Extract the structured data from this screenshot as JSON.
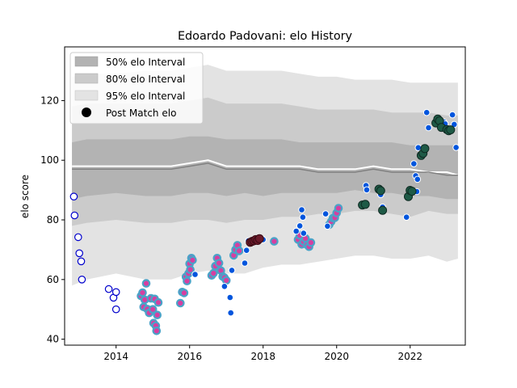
{
  "chart_data": {
    "type": "scatter",
    "title": "Edoardo Padovani: elo History",
    "xlabel": "",
    "ylabel": "elo score",
    "xlim": [
      2012.6,
      2023.5
    ],
    "ylim": [
      38,
      138
    ],
    "x_ticks": [
      2014,
      2016,
      2018,
      2020,
      2022
    ],
    "y_ticks": [
      40,
      60,
      80,
      100,
      120
    ],
    "grid": false,
    "legend_position": "top-left",
    "legend": [
      {
        "label": "50% elo Interval",
        "kind": "band",
        "color": "#b3b3b3"
      },
      {
        "label": "80% elo Interval",
        "kind": "band",
        "color": "#cbcbcb"
      },
      {
        "label": "95% elo Interval",
        "kind": "band",
        "color": "#e3e3e3"
      },
      {
        "label": "Post Match elo",
        "kind": "marker",
        "color": "#000000"
      }
    ],
    "colors": {
      "band50": "#b3b3b3",
      "band80": "#cbcbcb",
      "band95": "#e3e3e3",
      "median_line": "#808080",
      "mean_line": "#ffffff",
      "marker_edge_blue": "#0000cc",
      "marker_fill_blue": "#0055dd",
      "marker_edge_teal": "#4aa3c8",
      "marker_fill_pink": "#d63fa0",
      "marker_fill_dark_green": "#1e5a46",
      "marker_fill_maroon": "#6b1a2a"
    },
    "bands": {
      "x": [
        2012.8,
        2013.2,
        2014.0,
        2014.8,
        2015.5,
        2016.0,
        2016.5,
        2017.0,
        2017.5,
        2018.0,
        2018.5,
        2019.0,
        2019.5,
        2020.0,
        2020.5,
        2021.0,
        2021.5,
        2022.0,
        2022.5,
        2023.0,
        2023.3
      ],
      "p95_low": [
        58,
        60,
        62,
        60,
        60,
        62,
        63,
        62,
        62,
        64,
        65,
        65,
        66,
        67,
        68,
        68,
        67,
        67,
        68,
        66,
        67
      ],
      "p80_low": [
        78,
        79,
        80,
        79,
        79,
        80,
        80,
        79,
        80,
        80,
        81,
        81,
        82,
        82,
        83,
        83,
        82,
        81,
        83,
        82,
        82
      ],
      "p50_low": [
        87,
        88,
        89,
        88,
        88,
        89,
        89,
        88,
        89,
        88,
        89,
        89,
        89,
        89,
        90,
        89,
        89,
        88,
        88,
        87,
        87
      ],
      "median": [
        97,
        97,
        97,
        97,
        97,
        98,
        99,
        97,
        97,
        97,
        97,
        97,
        96,
        96,
        96,
        97,
        96,
        96,
        96,
        95,
        95
      ],
      "mean": [
        98,
        98,
        98,
        98,
        98,
        99,
        100,
        98,
        98,
        98,
        98,
        98,
        97,
        97,
        97,
        98,
        97,
        97,
        96,
        96,
        95
      ],
      "p50_high": [
        106,
        107,
        107,
        107,
        107,
        108,
        108,
        107,
        107,
        107,
        107,
        106,
        106,
        106,
        106,
        106,
        106,
        105,
        105,
        105,
        105
      ],
      "p80_high": [
        118,
        119,
        119,
        119,
        119,
        120,
        121,
        119,
        119,
        119,
        119,
        118,
        117,
        117,
        117,
        117,
        116,
        116,
        116,
        115,
        115
      ],
      "p95_high": [
        128,
        129,
        129,
        130,
        130,
        131,
        132,
        130,
        130,
        130,
        130,
        129,
        128,
        128,
        127,
        127,
        127,
        126,
        126,
        126,
        126
      ]
    },
    "series": [
      {
        "name": "Post Match elo",
        "style": "open-blue",
        "points": [
          [
            2012.85,
            87.8
          ],
          [
            2012.87,
            81.5
          ],
          [
            2012.97,
            74.2
          ],
          [
            2013.0,
            68.8
          ],
          [
            2013.05,
            66.1
          ],
          [
            2013.07,
            60.0
          ],
          [
            2013.8,
            56.8
          ],
          [
            2013.93,
            53.9
          ],
          [
            2014.0,
            55.8
          ],
          [
            2014.0,
            50.0
          ]
        ]
      },
      {
        "name": "Post Match elo",
        "style": "pink-teal",
        "points": [
          [
            2014.68,
            54.5
          ],
          [
            2014.72,
            55.6
          ],
          [
            2014.75,
            50.8
          ],
          [
            2014.78,
            53.2
          ],
          [
            2014.82,
            58.7
          ],
          [
            2014.85,
            50.1
          ],
          [
            2014.9,
            48.8
          ],
          [
            2014.95,
            53.7
          ],
          [
            2015.0,
            50.0
          ],
          [
            2015.02,
            45.4
          ],
          [
            2015.05,
            53.5
          ],
          [
            2015.08,
            44.5
          ],
          [
            2015.1,
            42.8
          ],
          [
            2015.12,
            48.1
          ],
          [
            2015.15,
            52.3
          ],
          [
            2015.75,
            52.1
          ],
          [
            2015.8,
            55.8
          ],
          [
            2015.85,
            55.5
          ],
          [
            2015.9,
            60.9
          ],
          [
            2015.93,
            59.5
          ],
          [
            2015.97,
            62.0
          ],
          [
            2016.0,
            65.3
          ],
          [
            2016.02,
            63.3
          ],
          [
            2016.05,
            67.2
          ],
          [
            2016.08,
            66.5
          ],
          [
            2016.6,
            61.4
          ],
          [
            2016.65,
            62.1
          ],
          [
            2016.7,
            64.5
          ],
          [
            2016.75,
            67.2
          ],
          [
            2016.8,
            65.5
          ],
          [
            2016.85,
            63.0
          ],
          [
            2016.9,
            61.0
          ],
          [
            2016.95,
            60.6
          ],
          [
            2017.0,
            59.7
          ],
          [
            2017.2,
            68.1
          ],
          [
            2017.25,
            70.0
          ],
          [
            2017.3,
            71.5
          ],
          [
            2017.35,
            69.6
          ],
          [
            2018.3,
            72.8
          ],
          [
            2018.95,
            73.4
          ],
          [
            2019.0,
            74.8
          ],
          [
            2019.05,
            71.8
          ],
          [
            2019.1,
            72.7
          ],
          [
            2019.15,
            73.8
          ],
          [
            2019.2,
            71.6
          ],
          [
            2019.25,
            71.0
          ],
          [
            2019.3,
            72.4
          ],
          [
            2019.8,
            78.4
          ],
          [
            2019.85,
            79.4
          ],
          [
            2019.9,
            80.6
          ],
          [
            2019.95,
            80.7
          ],
          [
            2020.0,
            82.3
          ],
          [
            2020.05,
            83.9
          ]
        ]
      },
      {
        "name": "Post Match elo",
        "style": "solid-blue",
        "points": [
          [
            2016.15,
            61.7
          ],
          [
            2016.95,
            57.7
          ],
          [
            2017.1,
            54.0
          ],
          [
            2017.12,
            48.8
          ],
          [
            2017.15,
            63.1
          ],
          [
            2017.5,
            65.5
          ],
          [
            2017.55,
            69.8
          ],
          [
            2017.6,
            73.0
          ],
          [
            2018.0,
            73.4
          ],
          [
            2018.9,
            76.2
          ],
          [
            2019.0,
            78.0
          ],
          [
            2019.05,
            83.4
          ],
          [
            2019.08,
            80.9
          ],
          [
            2019.1,
            75.5
          ],
          [
            2019.7,
            82.0
          ],
          [
            2019.75,
            77.9
          ],
          [
            2020.8,
            91.5
          ],
          [
            2020.82,
            90.1
          ],
          [
            2021.2,
            88.5
          ],
          [
            2021.25,
            84.3
          ],
          [
            2021.9,
            80.9
          ],
          [
            2021.95,
            87.6
          ],
          [
            2022.1,
            98.8
          ],
          [
            2022.15,
            94.8
          ],
          [
            2022.18,
            89.5
          ],
          [
            2022.2,
            93.6
          ],
          [
            2022.22,
            104.2
          ],
          [
            2022.45,
            116.0
          ],
          [
            2022.5,
            110.9
          ],
          [
            2022.85,
            112.9
          ],
          [
            2022.9,
            111.8
          ],
          [
            2022.92,
            112.8
          ],
          [
            2022.95,
            112.2
          ],
          [
            2023.15,
            115.2
          ],
          [
            2023.2,
            112.0
          ],
          [
            2023.25,
            104.3
          ]
        ]
      },
      {
        "name": "Post Match elo",
        "style": "dark-green",
        "points": [
          [
            2020.7,
            85.0
          ],
          [
            2020.78,
            85.2
          ],
          [
            2021.15,
            90.3
          ],
          [
            2021.2,
            89.8
          ],
          [
            2021.25,
            83.2
          ],
          [
            2021.95,
            87.8
          ],
          [
            2022.0,
            89.9
          ],
          [
            2022.05,
            89.6
          ],
          [
            2022.3,
            101.6
          ],
          [
            2022.35,
            102.3
          ],
          [
            2022.4,
            103.9
          ],
          [
            2022.7,
            112.5
          ],
          [
            2022.75,
            113.8
          ],
          [
            2022.8,
            113.2
          ],
          [
            2022.85,
            111.0
          ],
          [
            2023.0,
            110.3
          ],
          [
            2023.05,
            109.9
          ],
          [
            2023.1,
            110.2
          ]
        ]
      },
      {
        "name": "Post Match elo",
        "style": "maroon",
        "points": [
          [
            2017.65,
            72.5
          ],
          [
            2017.7,
            72.8
          ],
          [
            2017.75,
            73.0
          ],
          [
            2017.8,
            73.4
          ],
          [
            2017.85,
            73.1
          ],
          [
            2017.9,
            73.7
          ]
        ]
      }
    ]
  }
}
